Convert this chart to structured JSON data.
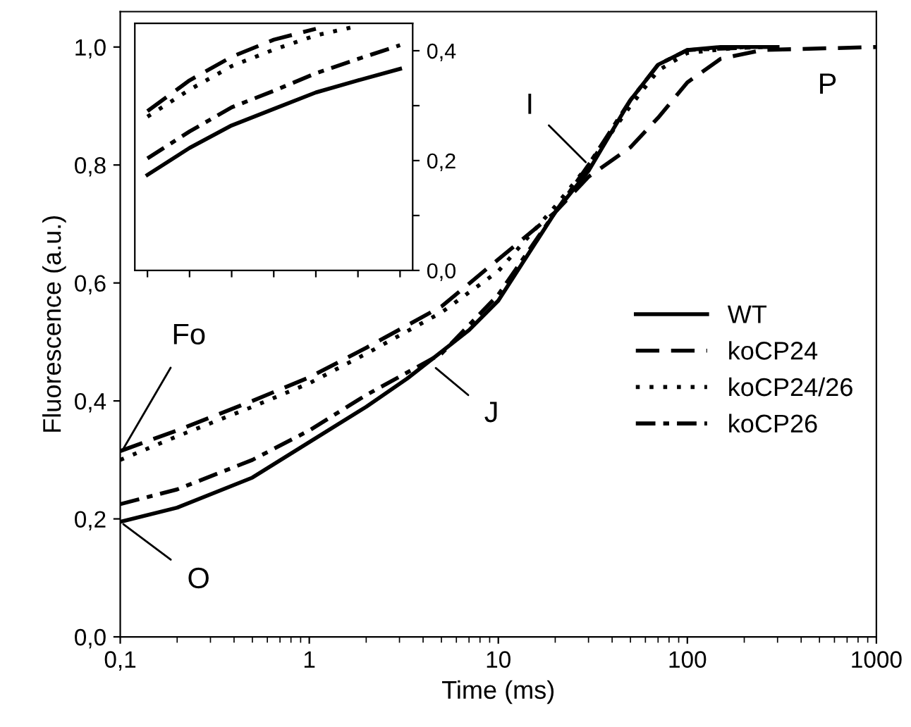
{
  "chart_data": [
    {
      "type": "line",
      "xlabel": "Time (ms)",
      "ylabel": "Fluorescence (a.u.)",
      "log": "x",
      "legend": "center right",
      "grid": false,
      "xlim": [
        0.1,
        1000
      ],
      "xticks": [
        {
          "value": 0.1,
          "label": "0,1"
        },
        1,
        10,
        100,
        1000
      ],
      "ylim": [
        0,
        1.06
      ],
      "yticks": [
        {
          "value": 0,
          "label": "0,0"
        },
        {
          "value": 0.2,
          "label": "0,2"
        },
        {
          "value": 0.4,
          "label": "0,4"
        },
        {
          "value": 0.6,
          "label": "0,6"
        },
        {
          "value": 0.8,
          "label": "0,8"
        },
        {
          "value": 1.0,
          "label": "1,0"
        }
      ],
      "series": [
        {
          "name": "WT",
          "color": "#000000",
          "line_style": "solid",
          "x": [
            0.1,
            0.2,
            0.5,
            1,
            2,
            3.3,
            7,
            10,
            20,
            30,
            50,
            70,
            100,
            150,
            300
          ],
          "values": [
            0.195,
            0.219,
            0.27,
            0.33,
            0.39,
            0.438,
            0.52,
            0.57,
            0.72,
            0.79,
            0.91,
            0.97,
            0.995,
            1.0,
            1.0
          ]
        },
        {
          "name": "koCP24",
          "color": "#000000",
          "line_style": "dashed",
          "x": [
            0.1,
            0.2,
            0.5,
            1,
            2,
            5,
            10,
            20,
            30,
            50,
            70,
            100,
            150,
            250,
            1000
          ],
          "values": [
            0.315,
            0.35,
            0.4,
            0.44,
            0.49,
            0.56,
            0.64,
            0.72,
            0.78,
            0.83,
            0.88,
            0.94,
            0.98,
            0.995,
            1.0
          ]
        },
        {
          "name": "koCP24/26",
          "color": "#000000",
          "line_style": "dotted",
          "x": [
            0.1,
            0.2,
            0.5,
            1,
            2,
            5,
            10,
            20,
            30,
            50,
            70,
            100,
            200
          ],
          "values": [
            0.3,
            0.34,
            0.39,
            0.43,
            0.48,
            0.55,
            0.62,
            0.73,
            0.8,
            0.9,
            0.96,
            0.99,
            1.0
          ]
        },
        {
          "name": "koCP26",
          "color": "#000000",
          "line_style": "dashdot",
          "x": [
            0.1,
            0.2,
            0.5,
            1,
            2,
            5,
            10,
            20,
            30,
            50,
            70,
            100,
            250
          ],
          "values": [
            0.225,
            0.25,
            0.3,
            0.35,
            0.41,
            0.48,
            0.58,
            0.72,
            0.8,
            0.91,
            0.97,
            0.995,
            1.0
          ]
        }
      ],
      "annotations": [
        {
          "text": "O",
          "x": 0.1,
          "y": 0.195
        },
        {
          "text": "J",
          "x": 4.5,
          "y": 0.46
        },
        {
          "text": "I",
          "x": 30,
          "y": 0.8
        },
        {
          "text": "P",
          "x": 700,
          "y": 1.0
        },
        {
          "text": "Fo",
          "x": 0.1,
          "y": 0.31
        }
      ]
    },
    {
      "type": "line",
      "tick_labels": "y",
      "grid": false,
      "categories": [
        null,
        null,
        null,
        null,
        null,
        null,
        null
      ],
      "ylim": [
        0,
        0.45
      ],
      "yticks": [
        {
          "value": 0,
          "label": "0,0"
        },
        {
          "value": 0.1,
          "label": null
        },
        {
          "value": 0.2,
          "label": "0,2"
        },
        {
          "value": 0.3,
          "label": null
        },
        {
          "value": 0.4,
          "label": "0,4"
        }
      ],
      "series": [
        {
          "color": "#000000",
          "line_style": "solid",
          "values": [
            0.174,
            0.223,
            0.264,
            0.294,
            0.324,
            0.346,
            0.367
          ]
        },
        {
          "color": "#000000",
          "line_style": "dashed",
          "values": [
            0.29,
            0.346,
            0.389,
            0.42,
            0.44,
            null,
            null
          ]
        },
        {
          "color": "#000000",
          "line_style": "dotted",
          "values": [
            0.28,
            0.329,
            0.372,
            0.402,
            0.428,
            0.445,
            null
          ]
        },
        {
          "color": "#000000",
          "line_style": "dashdot",
          "values": [
            0.204,
            0.253,
            0.297,
            0.327,
            0.359,
            0.385,
            0.41
          ]
        }
      ]
    }
  ]
}
